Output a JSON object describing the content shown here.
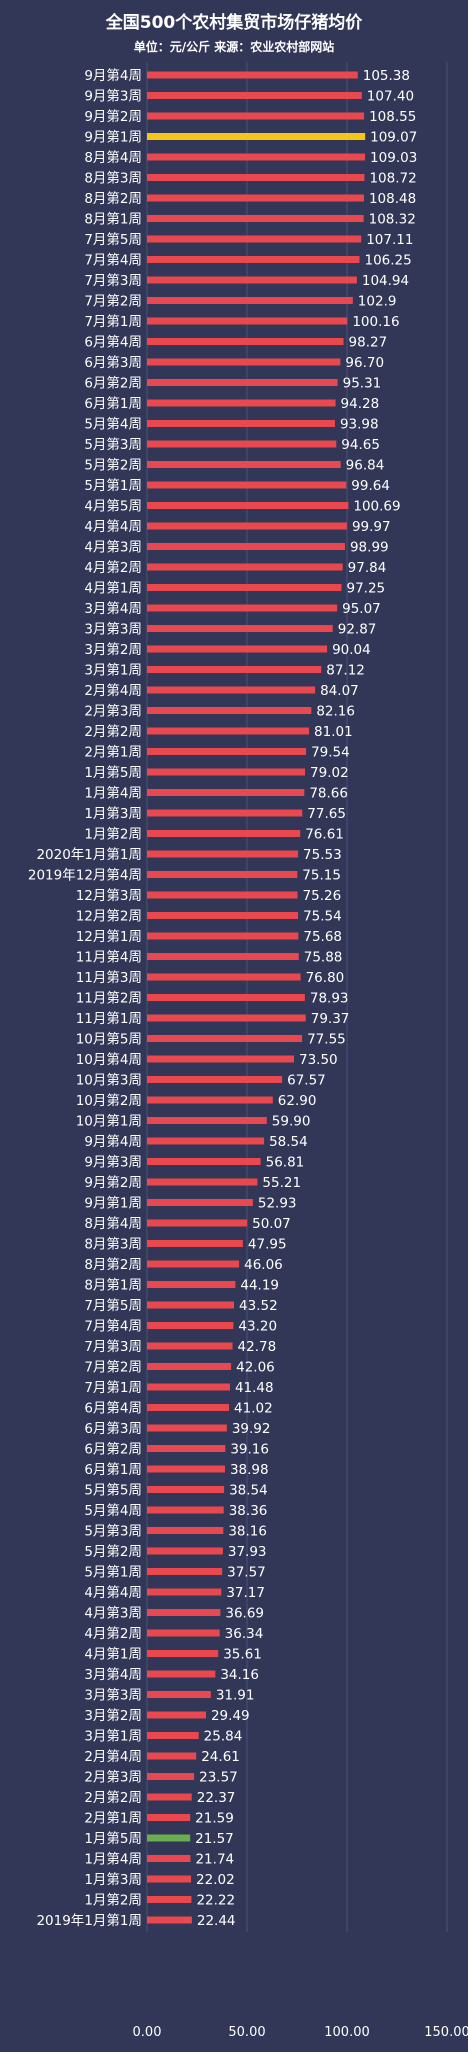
{
  "chart_data": {
    "type": "bar",
    "orientation": "horizontal",
    "title": "全国500个农村集贸市场仔猪均价",
    "subtitle": "单位：元/公斤 来源：农业农村部网站",
    "xlim": [
      0,
      150
    ],
    "x_ticks": [
      "0.00",
      "50.00",
      "100.00",
      "150.00"
    ],
    "categories": [
      "9月第4周",
      "9月第3周",
      "9月第2周",
      "9月第1周",
      "8月第4周",
      "8月第3周",
      "8月第2周",
      "8月第1周",
      "7月第5周",
      "7月第4周",
      "7月第3周",
      "7月第2周",
      "7月第1周",
      "6月第4周",
      "6月第3周",
      "6月第2周",
      "6月第1周",
      "5月第4周",
      "5月第3周",
      "5月第2周",
      "5月第1周",
      "4月第5周",
      "4月第4周",
      "4月第3周",
      "4月第2周",
      "4月第1周",
      "3月第4周",
      "3月第3周",
      "3月第2周",
      "3月第1周",
      "2月第4周",
      "2月第3周",
      "2月第2周",
      "2月第1周",
      "1月第5周",
      "1月第4周",
      "1月第3周",
      "1月第2周",
      "2020年1月第1周",
      "2019年12月第4周",
      "12月第3周",
      "12月第2周",
      "12月第1周",
      "11月第4周",
      "11月第3周",
      "11月第2周",
      "11月第1周",
      "10月第5周",
      "10月第4周",
      "10月第3周",
      "10月第2周",
      "10月第1周",
      "9月第4周",
      "9月第3周",
      "9月第2周",
      "9月第1周",
      "8月第4周",
      "8月第3周",
      "8月第2周",
      "8月第1周",
      "7月第5周",
      "7月第4周",
      "7月第3周",
      "7月第2周",
      "7月第1周",
      "6月第4周",
      "6月第3周",
      "6月第2周",
      "6月第1周",
      "5月第5周",
      "5月第4周",
      "5月第3周",
      "5月第2周",
      "5月第1周",
      "4月第4周",
      "4月第3周",
      "4月第2周",
      "4月第1周",
      "3月第4周",
      "3月第3周",
      "3月第2周",
      "3月第1周",
      "2月第4周",
      "2月第3周",
      "2月第2周",
      "2月第1周",
      "1月第5周",
      "1月第4周",
      "1月第3周",
      "1月第2周",
      "2019年1月第1周"
    ],
    "values": [
      105.38,
      107.4,
      108.55,
      109.07,
      109.03,
      108.72,
      108.48,
      108.32,
      107.11,
      106.25,
      104.94,
      102.9,
      100.16,
      98.27,
      96.7,
      95.31,
      94.28,
      93.98,
      94.65,
      96.84,
      99.64,
      100.69,
      99.97,
      98.99,
      97.84,
      97.25,
      95.07,
      92.87,
      90.04,
      87.12,
      84.07,
      82.16,
      81.01,
      79.54,
      79.02,
      78.66,
      77.65,
      76.61,
      75.53,
      75.15,
      75.26,
      75.54,
      75.68,
      75.88,
      76.8,
      78.93,
      79.37,
      77.55,
      73.5,
      67.57,
      62.9,
      59.9,
      58.54,
      56.81,
      55.21,
      52.93,
      50.07,
      47.95,
      46.06,
      44.19,
      43.52,
      43.2,
      42.78,
      42.06,
      41.48,
      41.02,
      39.92,
      39.16,
      38.98,
      38.54,
      38.36,
      38.16,
      37.93,
      37.57,
      37.17,
      36.69,
      36.34,
      35.61,
      34.16,
      31.91,
      29.49,
      25.84,
      24.61,
      23.57,
      22.37,
      21.59,
      21.57,
      21.74,
      22.02,
      22.22,
      22.44
    ],
    "value_labels": [
      "105.38",
      "107.40",
      "108.55",
      "109.07",
      "109.03",
      "108.72",
      "108.48",
      "108.32",
      "107.11",
      "106.25",
      "104.94",
      "102.9",
      "100.16",
      "98.27",
      "96.70",
      "95.31",
      "94.28",
      "93.98",
      "94.65",
      "96.84",
      "99.64",
      "100.69",
      "99.97",
      "98.99",
      "97.84",
      "97.25",
      "95.07",
      "92.87",
      "90.04",
      "87.12",
      "84.07",
      "82.16",
      "81.01",
      "79.54",
      "79.02",
      "78.66",
      "77.65",
      "76.61",
      "75.53",
      "75.15",
      "75.26",
      "75.54",
      "75.68",
      "75.88",
      "76.80",
      "78.93",
      "79.37",
      "77.55",
      "73.50",
      "67.57",
      "62.90",
      "59.90",
      "58.54",
      "56.81",
      "55.21",
      "52.93",
      "50.07",
      "47.95",
      "46.06",
      "44.19",
      "43.52",
      "43.20",
      "42.78",
      "42.06",
      "41.48",
      "41.02",
      "39.92",
      "39.16",
      "38.98",
      "38.54",
      "38.36",
      "38.16",
      "37.93",
      "37.57",
      "37.17",
      "36.69",
      "36.34",
      "35.61",
      "34.16",
      "31.91",
      "29.49",
      "25.84",
      "24.61",
      "23.57",
      "22.37",
      "21.59",
      "21.57",
      "21.74",
      "22.02",
      "22.22",
      "22.44"
    ],
    "highlights": {
      "max_index": 3,
      "min_index": 86
    },
    "grid": true,
    "colors": {
      "background": "#323757",
      "bar": "#e8484e",
      "max_bar": "#f5c518",
      "min_bar": "#6cad4f",
      "grid": "#4b5078",
      "text": "#ffffff"
    }
  }
}
